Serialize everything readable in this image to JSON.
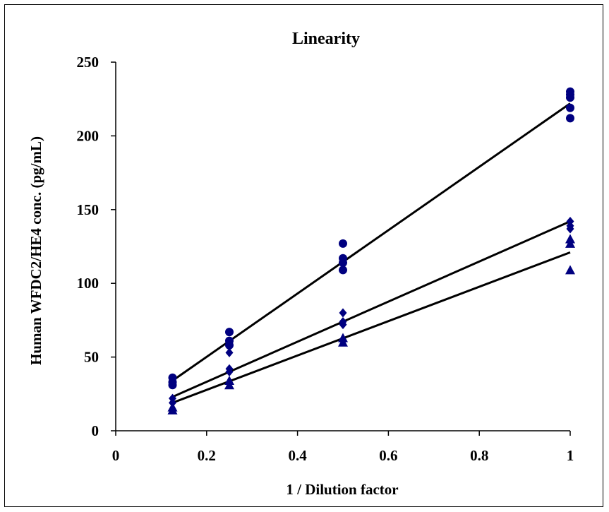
{
  "chart_data": {
    "type": "scatter",
    "title": "Linearity",
    "xlabel": "1 / Dilution factor",
    "ylabel": "Human WFDC2/HE4 conc. (pg/mL)",
    "xlim": [
      0,
      1
    ],
    "ylim": [
      0,
      250
    ],
    "xticks": [
      0,
      0.2,
      0.4,
      0.6,
      0.8,
      1
    ],
    "xtick_labels": [
      "0",
      "0.2",
      "0.4",
      "0.6",
      "0.8",
      "1"
    ],
    "yticks": [
      0,
      50,
      100,
      150,
      200,
      250
    ],
    "ytick_labels": [
      "0",
      "50",
      "100",
      "150",
      "200",
      "250"
    ],
    "grid": false,
    "marker_color": "#000080",
    "line_color": "#000000",
    "series": [
      {
        "marker": "circle",
        "x": [
          0.125,
          0.125,
          0.125,
          0.25,
          0.25,
          0.25,
          0.5,
          0.5,
          0.5,
          0.5,
          1,
          1,
          1,
          1,
          1
        ],
        "y": [
          36,
          33,
          31,
          67,
          61,
          58,
          127,
          117,
          114,
          109,
          230,
          228,
          226,
          219,
          212
        ],
        "fit": {
          "x": [
            0.125,
            1
          ],
          "y": [
            34,
            222
          ]
        }
      },
      {
        "marker": "diamond",
        "x": [
          0.125,
          0.125,
          0.25,
          0.25,
          0.25,
          0.5,
          0.5,
          0.5,
          1,
          1,
          1
        ],
        "y": [
          22,
          19,
          53,
          42,
          40,
          80,
          74,
          72,
          142,
          139,
          137
        ],
        "fit": {
          "x": [
            0.125,
            1
          ],
          "y": [
            23,
            142
          ]
        }
      },
      {
        "marker": "triangle",
        "x": [
          0.125,
          0.125,
          0.25,
          0.25,
          0.5,
          0.5,
          1,
          1,
          1
        ],
        "y": [
          16,
          14,
          34,
          31,
          63,
          60,
          130,
          127,
          109
        ],
        "fit": {
          "x": [
            0.125,
            1
          ],
          "y": [
            19,
            121
          ]
        }
      }
    ]
  }
}
